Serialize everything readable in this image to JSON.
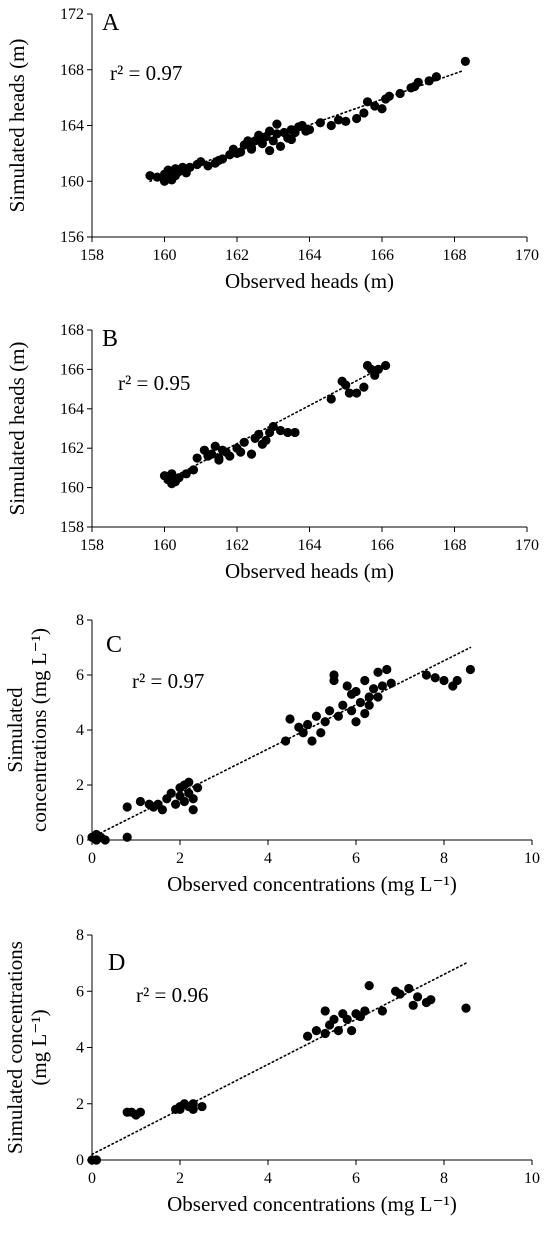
{
  "chart_data": [
    {
      "type": "scatter",
      "panel_label": "A",
      "annotation": "r² = 0.97",
      "xlabel": "Observed heads (m)",
      "ylabel": "Simulated heads (m)",
      "xlim": [
        158,
        170
      ],
      "ylim": [
        156,
        172
      ],
      "xticks": [
        158,
        160,
        162,
        164,
        166,
        168,
        170
      ],
      "yticks": [
        156,
        160,
        164,
        168,
        172
      ],
      "trendline": {
        "style": "dotted",
        "from": [
          159.6,
          160.0
        ],
        "to": [
          168.2,
          167.9
        ]
      },
      "points": [
        [
          159.6,
          160.4
        ],
        [
          159.8,
          160.3
        ],
        [
          160.0,
          160.5
        ],
        [
          160.1,
          160.3
        ],
        [
          160.2,
          160.6
        ],
        [
          160.2,
          160.1
        ],
        [
          160.3,
          160.4
        ],
        [
          160.4,
          160.7
        ],
        [
          160.1,
          160.8
        ],
        [
          160.5,
          161.0
        ],
        [
          160.6,
          160.6
        ],
        [
          160.7,
          161.0
        ],
        [
          160.9,
          161.2
        ],
        [
          161.0,
          161.4
        ],
        [
          161.2,
          161.1
        ],
        [
          161.4,
          161.3
        ],
        [
          161.6,
          161.6
        ],
        [
          161.8,
          161.9
        ],
        [
          161.9,
          162.3
        ],
        [
          162.1,
          162.1
        ],
        [
          162.2,
          162.6
        ],
        [
          162.3,
          162.9
        ],
        [
          162.4,
          162.4
        ],
        [
          162.5,
          162.9
        ],
        [
          162.6,
          163.3
        ],
        [
          162.7,
          162.7
        ],
        [
          162.8,
          163.2
        ],
        [
          162.9,
          162.2
        ],
        [
          163.0,
          162.9
        ],
        [
          163.1,
          163.4
        ],
        [
          163.2,
          162.5
        ],
        [
          163.3,
          163.5
        ],
        [
          163.4,
          163.1
        ],
        [
          163.5,
          163.7
        ],
        [
          163.6,
          163.5
        ],
        [
          163.7,
          163.9
        ],
        [
          163.8,
          164.0
        ],
        [
          163.9,
          163.6
        ],
        [
          164.0,
          163.7
        ],
        [
          164.3,
          164.2
        ],
        [
          164.6,
          164.0
        ],
        [
          164.8,
          164.4
        ],
        [
          165.0,
          164.3
        ],
        [
          165.3,
          164.5
        ],
        [
          165.5,
          164.9
        ],
        [
          165.8,
          165.4
        ],
        [
          166.0,
          165.2
        ],
        [
          166.2,
          166.1
        ],
        [
          166.5,
          166.3
        ],
        [
          166.8,
          166.7
        ],
        [
          167.0,
          167.1
        ],
        [
          167.3,
          167.2
        ],
        [
          167.5,
          167.5
        ],
        [
          168.3,
          168.6
        ],
        [
          162.9,
          163.6
        ],
        [
          163.1,
          164.1
        ],
        [
          162.4,
          162.3
        ],
        [
          163.5,
          163.0
        ],
        [
          162.0,
          162.0
        ],
        [
          160.3,
          160.9
        ],
        [
          160.0,
          160.0
        ],
        [
          161.5,
          161.5
        ],
        [
          162.7,
          163.0
        ],
        [
          166.9,
          166.8
        ],
        [
          166.1,
          165.9
        ],
        [
          165.6,
          165.7
        ]
      ]
    },
    {
      "type": "scatter",
      "panel_label": "B",
      "annotation": "r² = 0.95",
      "xlabel": "Observed heads (m)",
      "ylabel": "Simulated heads (m)",
      "xlim": [
        158,
        170
      ],
      "ylim": [
        158,
        168
      ],
      "xticks": [
        158,
        160,
        162,
        164,
        166,
        168,
        170
      ],
      "yticks": [
        158,
        160,
        162,
        164,
        166,
        168
      ],
      "trendline": {
        "style": "dotted",
        "from": [
          160.0,
          160.3
        ],
        "to": [
          166.1,
          166.2
        ]
      },
      "points": [
        [
          160.0,
          160.6
        ],
        [
          160.1,
          160.4
        ],
        [
          160.2,
          160.7
        ],
        [
          160.3,
          160.3
        ],
        [
          160.4,
          160.5
        ],
        [
          160.6,
          160.7
        ],
        [
          160.8,
          160.9
        ],
        [
          160.9,
          161.5
        ],
        [
          161.1,
          161.9
        ],
        [
          161.2,
          161.6
        ],
        [
          161.3,
          161.7
        ],
        [
          161.4,
          162.1
        ],
        [
          161.5,
          161.5
        ],
        [
          161.6,
          161.9
        ],
        [
          161.7,
          161.8
        ],
        [
          161.8,
          161.6
        ],
        [
          162.0,
          162.0
        ],
        [
          162.1,
          161.8
        ],
        [
          162.2,
          162.3
        ],
        [
          162.4,
          161.7
        ],
        [
          162.5,
          162.5
        ],
        [
          162.6,
          162.7
        ],
        [
          162.7,
          162.2
        ],
        [
          162.8,
          162.4
        ],
        [
          162.9,
          162.8
        ],
        [
          163.0,
          163.1
        ],
        [
          163.2,
          162.9
        ],
        [
          163.4,
          162.8
        ],
        [
          163.6,
          162.8
        ],
        [
          164.6,
          164.5
        ],
        [
          164.9,
          165.4
        ],
        [
          165.0,
          165.2
        ],
        [
          165.1,
          164.8
        ],
        [
          165.3,
          164.8
        ],
        [
          165.5,
          165.1
        ],
        [
          165.6,
          166.2
        ],
        [
          165.7,
          166.0
        ],
        [
          165.8,
          165.7
        ],
        [
          165.9,
          166.0
        ],
        [
          166.1,
          166.2
        ],
        [
          161.5,
          161.4
        ],
        [
          160.2,
          160.2
        ]
      ]
    },
    {
      "type": "scatter",
      "panel_label": "C",
      "annotation": "r² = 0.97",
      "xlabel": "Observed concentrations (mg L⁻¹)",
      "ylabel": [
        "Simulated",
        "concentrations (mg L⁻¹)"
      ],
      "xlim": [
        0,
        10
      ],
      "ylim": [
        0,
        8
      ],
      "xticks": [
        0,
        2,
        4,
        6,
        8,
        10
      ],
      "yticks": [
        0,
        2,
        4,
        6,
        8
      ],
      "trendline": {
        "style": "dotted",
        "from": [
          0.0,
          0.1
        ],
        "to": [
          8.6,
          7.0
        ]
      },
      "points": [
        [
          0.0,
          0.1
        ],
        [
          0.1,
          0.2
        ],
        [
          0.1,
          0.0
        ],
        [
          0.2,
          0.1
        ],
        [
          0.3,
          0.0
        ],
        [
          0.8,
          0.1
        ],
        [
          0.8,
          1.2
        ],
        [
          1.1,
          1.4
        ],
        [
          1.3,
          1.3
        ],
        [
          1.4,
          1.2
        ],
        [
          1.5,
          1.3
        ],
        [
          1.6,
          1.1
        ],
        [
          1.7,
          1.5
        ],
        [
          1.8,
          1.7
        ],
        [
          1.9,
          1.3
        ],
        [
          2.0,
          1.6
        ],
        [
          2.0,
          1.9
        ],
        [
          2.1,
          2.0
        ],
        [
          2.1,
          1.4
        ],
        [
          2.2,
          1.7
        ],
        [
          2.2,
          2.1
        ],
        [
          2.3,
          1.5
        ],
        [
          2.3,
          1.1
        ],
        [
          2.4,
          1.9
        ],
        [
          4.4,
          3.6
        ],
        [
          4.5,
          4.4
        ],
        [
          4.7,
          4.1
        ],
        [
          4.8,
          3.9
        ],
        [
          4.9,
          4.2
        ],
        [
          5.0,
          3.6
        ],
        [
          5.1,
          4.5
        ],
        [
          5.2,
          3.9
        ],
        [
          5.3,
          4.3
        ],
        [
          5.4,
          4.7
        ],
        [
          5.5,
          5.8
        ],
        [
          5.5,
          6.0
        ],
        [
          5.6,
          4.5
        ],
        [
          5.7,
          4.9
        ],
        [
          5.8,
          5.6
        ],
        [
          5.9,
          4.7
        ],
        [
          6.0,
          5.4
        ],
        [
          6.0,
          4.3
        ],
        [
          6.1,
          5.0
        ],
        [
          6.2,
          5.8
        ],
        [
          6.2,
          4.6
        ],
        [
          6.3,
          5.2
        ],
        [
          6.4,
          5.5
        ],
        [
          6.5,
          5.2
        ],
        [
          6.5,
          6.1
        ],
        [
          6.6,
          5.6
        ],
        [
          6.7,
          6.2
        ],
        [
          6.8,
          5.7
        ],
        [
          7.6,
          6.0
        ],
        [
          7.8,
          5.9
        ],
        [
          8.0,
          5.8
        ],
        [
          8.2,
          5.6
        ],
        [
          8.3,
          5.8
        ],
        [
          8.6,
          6.2
        ],
        [
          5.9,
          5.3
        ],
        [
          6.3,
          4.9
        ]
      ]
    },
    {
      "type": "scatter",
      "panel_label": "D",
      "annotation": "r² = 0.96",
      "xlabel": "Observed concentrations (mg L⁻¹)",
      "ylabel": [
        "Simulated concentrations",
        "(mg L⁻¹)"
      ],
      "xlim": [
        0,
        10
      ],
      "ylim": [
        0,
        8
      ],
      "xticks": [
        0,
        2,
        4,
        6,
        8,
        10
      ],
      "yticks": [
        0,
        2,
        4,
        6,
        8
      ],
      "trendline": {
        "style": "dotted",
        "from": [
          0.0,
          0.2
        ],
        "to": [
          8.5,
          7.0
        ]
      },
      "points": [
        [
          0.0,
          0.0
        ],
        [
          0.1,
          0.0
        ],
        [
          0.1,
          0.0
        ],
        [
          0.8,
          1.7
        ],
        [
          0.9,
          1.7
        ],
        [
          1.0,
          1.6
        ],
        [
          1.1,
          1.7
        ],
        [
          1.9,
          1.8
        ],
        [
          2.0,
          1.9
        ],
        [
          2.0,
          1.8
        ],
        [
          2.1,
          2.0
        ],
        [
          2.2,
          1.9
        ],
        [
          2.3,
          1.8
        ],
        [
          2.3,
          2.0
        ],
        [
          2.5,
          1.9
        ],
        [
          4.9,
          4.4
        ],
        [
          5.1,
          4.6
        ],
        [
          5.3,
          5.3
        ],
        [
          5.3,
          4.5
        ],
        [
          5.4,
          4.8
        ],
        [
          5.5,
          5.0
        ],
        [
          5.6,
          4.6
        ],
        [
          5.7,
          5.2
        ],
        [
          5.9,
          4.6
        ],
        [
          6.0,
          5.2
        ],
        [
          6.2,
          5.3
        ],
        [
          6.3,
          6.2
        ],
        [
          6.6,
          5.3
        ],
        [
          6.9,
          6.0
        ],
        [
          7.0,
          5.9
        ],
        [
          7.2,
          6.1
        ],
        [
          7.3,
          5.5
        ],
        [
          7.4,
          5.8
        ],
        [
          7.6,
          5.6
        ],
        [
          7.7,
          5.7
        ],
        [
          8.5,
          5.4
        ],
        [
          6.1,
          5.1
        ],
        [
          5.8,
          5.0
        ]
      ]
    }
  ]
}
